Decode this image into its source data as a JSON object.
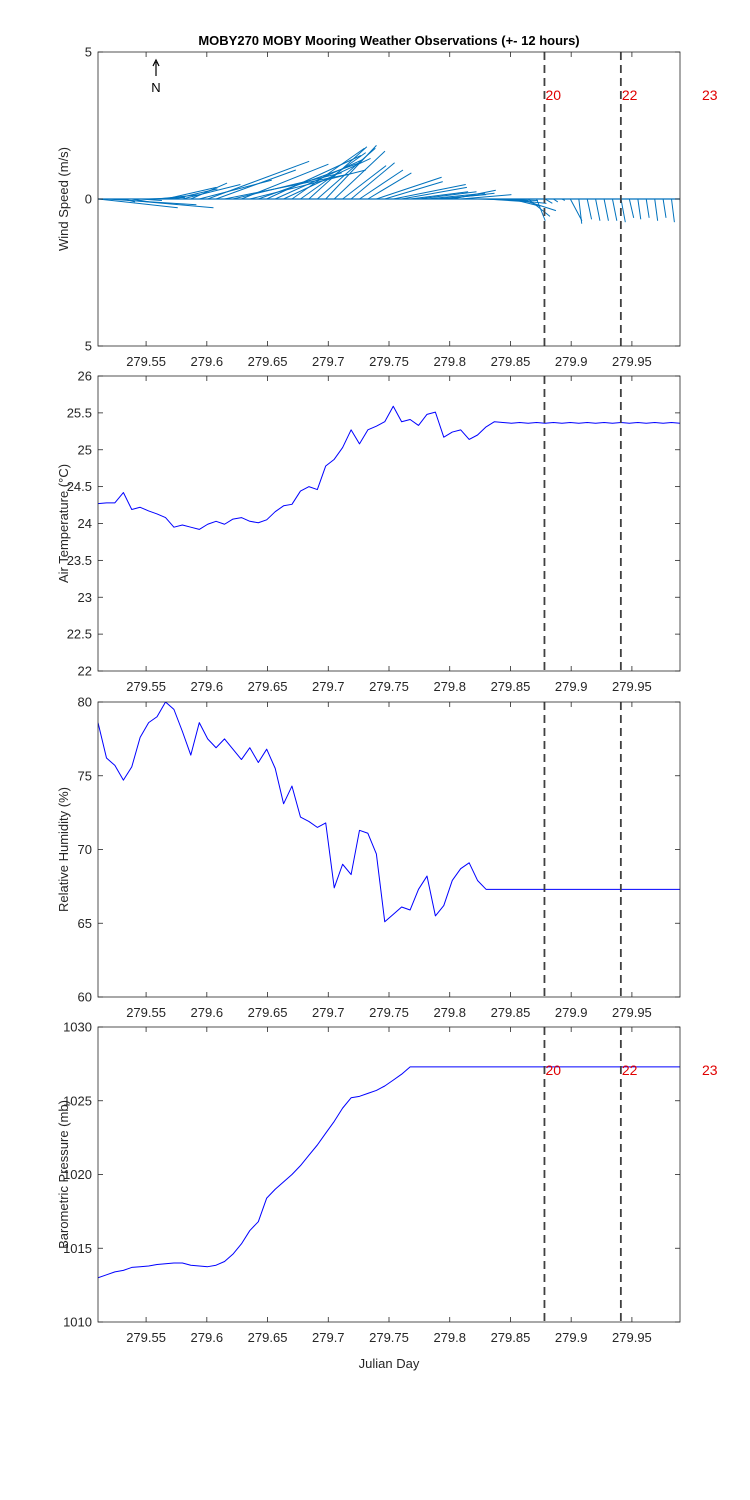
{
  "title": "MOBY270 MOBY Mooring Weather Observations (+- 12 hours)",
  "xlabel": "Julian Day",
  "north_label": "N",
  "colors": {
    "wind": "#0072BD",
    "line": "#0000FF",
    "marker_text": "#E00000",
    "marker_line": "#404040"
  },
  "chart_data": [
    {
      "id": "wind",
      "type": "quiver",
      "ylabel": "Wind Speed (m/s)",
      "xlim": [
        279.5104,
        279.9896
      ],
      "ylim": [
        -5,
        5
      ],
      "yticks": [
        -5,
        0,
        5
      ],
      "ytick_labels": [
        "5",
        "0",
        "5"
      ],
      "xticks": [
        279.55,
        279.6,
        279.65,
        279.7,
        279.75,
        279.8,
        279.85,
        279.9,
        279.95
      ],
      "xtick_labels": [
        "279.55",
        "279.6",
        "279.65",
        "279.7",
        "279.75",
        "279.8",
        "279.85",
        "279.9",
        "279.95"
      ],
      "x": [
        279.5104,
        279.5174,
        279.5243,
        279.5313,
        279.5382,
        279.5451,
        279.5521,
        279.559,
        279.566,
        279.5729,
        279.5799,
        279.5868,
        279.5938,
        279.6007,
        279.6076,
        279.6146,
        279.6215,
        279.6285,
        279.6354,
        279.6424,
        279.6493,
        279.6563,
        279.6632,
        279.6701,
        279.6771,
        279.684,
        279.691,
        279.6979,
        279.7049,
        279.7118,
        279.7188,
        279.7257,
        279.7326,
        279.7396,
        279.7465,
        279.7535,
        279.7604,
        279.7674,
        279.7743,
        279.7813,
        279.7882,
        279.7951,
        279.8021,
        279.809,
        279.816,
        279.8229,
        279.8299,
        279.8368,
        279.8438,
        279.8507,
        279.8576,
        279.8646,
        279.8715,
        279.8785,
        279.8854,
        279.8924,
        279.8993,
        279.9063,
        279.9132,
        279.9201,
        279.9271,
        279.934,
        279.941,
        279.9479,
        279.9549,
        279.9618,
        279.9688,
        279.9757,
        279.9826,
        279.9896
      ],
      "u": [
        5.5,
        6.2,
        6.8,
        0.8,
        1.2,
        1.5,
        2.5,
        3.0,
        3.5,
        3.0,
        4.0,
        2.5,
        5.0,
        7.0,
        5.5,
        8.5,
        7.5,
        6.0,
        8.0,
        7.0,
        6.5,
        6.0,
        6.0,
        5.0,
        4.5,
        4.0,
        4.0,
        3.5,
        3.5,
        3.0,
        3.0,
        3.0,
        3.0,
        4.5,
        4.0,
        5.0,
        4.5,
        4.0,
        4.0,
        4.0,
        3.5,
        3.5,
        3.0,
        3.5,
        3.5,
        3.5,
        3.0,
        3.0,
        3.0,
        2.0,
        2.5,
        1.5,
        0.6,
        0.5,
        0.3,
        0.2,
        0.8,
        0.2,
        0.3,
        0.3,
        0.3,
        0.3,
        0.3,
        0.3,
        0.2,
        0.2,
        0.2,
        0.2,
        0.2,
        0.2
      ],
      "v": [
        -0.6,
        -0.4,
        -0.6,
        -0.2,
        -0.2,
        -0.1,
        0.1,
        0.3,
        0.8,
        0.7,
        1.0,
        1.1,
        1.3,
        2.6,
        2.0,
        1.7,
        1.8,
        2.4,
        2.0,
        2.5,
        3.0,
        2.7,
        2.8,
        3.5,
        3.2,
        3.6,
        3.5,
        3.7,
        3.3,
        2.3,
        2.5,
        2.0,
        1.8,
        1.5,
        1.2,
        1.0,
        0.8,
        0.5,
        0.5,
        0.4,
        0.3,
        0.4,
        0.6,
        0.3,
        0.0,
        -0.1,
        -0.2,
        -0.1,
        -0.3,
        -0.5,
        -0.8,
        -1.2,
        -1.5,
        -0.3,
        -0.2,
        -0.1,
        -1.5,
        -1.7,
        -1.4,
        -1.5,
        -1.5,
        -1.5,
        -1.6,
        -1.3,
        -1.4,
        -1.3,
        -1.5,
        -1.3,
        -1.6,
        -1.4
      ],
      "verticals": [
        279.878,
        279.9409
      ],
      "markers": [
        {
          "x": 279.878,
          "label": "20"
        },
        {
          "x": 279.9409,
          "label": "22"
        },
        {
          "x": 280.0,
          "label": "23"
        }
      ]
    },
    {
      "id": "airtemp",
      "type": "line",
      "ylabel": "Air Temperature (°C)",
      "xlim": [
        279.5104,
        279.9896
      ],
      "ylim": [
        22,
        26
      ],
      "yticks": [
        22,
        22.5,
        23,
        23.5,
        24,
        24.5,
        25,
        25.5,
        26
      ],
      "ytick_labels": [
        "22",
        "22.5",
        "23",
        "23.5",
        "24",
        "24.5",
        "25",
        "25.5",
        "26"
      ],
      "xticks": [
        279.55,
        279.6,
        279.65,
        279.7,
        279.75,
        279.8,
        279.85,
        279.9,
        279.95
      ],
      "xtick_labels": [
        "279.55",
        "279.6",
        "279.65",
        "279.7",
        "279.75",
        "279.8",
        "279.85",
        "279.9",
        "279.95"
      ],
      "x": [
        279.5104,
        279.5174,
        279.5243,
        279.5313,
        279.5382,
        279.5451,
        279.5521,
        279.559,
        279.566,
        279.5729,
        279.5799,
        279.5868,
        279.5938,
        279.6007,
        279.6076,
        279.6146,
        279.6215,
        279.6285,
        279.6354,
        279.6424,
        279.6493,
        279.6563,
        279.6632,
        279.6701,
        279.6771,
        279.684,
        279.691,
        279.6979,
        279.7049,
        279.7118,
        279.7188,
        279.7257,
        279.7326,
        279.7396,
        279.7465,
        279.7535,
        279.7604,
        279.7674,
        279.7743,
        279.7813,
        279.7882,
        279.7951,
        279.8021,
        279.809,
        279.816,
        279.8229,
        279.8299,
        279.8368,
        279.8438,
        279.8507,
        279.8576,
        279.8646,
        279.8715,
        279.8785,
        279.8854,
        279.8924,
        279.8993,
        279.9063,
        279.9132,
        279.9201,
        279.9271,
        279.934,
        279.941,
        279.9479,
        279.9549,
        279.9618,
        279.9688,
        279.9757,
        279.9826,
        279.9896
      ],
      "y": [
        24.27,
        24.28,
        24.28,
        24.42,
        24.19,
        24.22,
        24.17,
        24.13,
        24.08,
        23.95,
        23.98,
        23.95,
        23.92,
        23.99,
        24.03,
        23.99,
        24.06,
        24.08,
        24.03,
        24.01,
        24.05,
        24.16,
        24.24,
        24.26,
        24.44,
        24.5,
        24.46,
        24.78,
        24.87,
        25.03,
        25.27,
        25.08,
        25.27,
        25.32,
        25.38,
        25.59,
        25.38,
        25.41,
        25.33,
        25.48,
        25.51,
        25.17,
        25.24,
        25.27,
        25.14,
        25.2,
        25.31,
        25.38,
        25.37,
        25.36,
        25.37,
        25.36,
        25.37,
        25.36,
        25.37,
        25.36,
        25.37,
        25.36,
        25.37,
        25.36,
        25.37,
        25.36,
        25.37,
        25.36,
        25.37,
        25.36,
        25.37,
        25.36,
        25.37,
        25.36
      ],
      "verticals": [
        279.878,
        279.9409
      ],
      "markers": []
    },
    {
      "id": "humidity",
      "type": "line",
      "ylabel": "Relative Humidity (%)",
      "xlim": [
        279.5104,
        279.9896
      ],
      "ylim": [
        60,
        80
      ],
      "yticks": [
        60,
        65,
        70,
        75,
        80
      ],
      "ytick_labels": [
        "60",
        "65",
        "70",
        "75",
        "80"
      ],
      "xticks": [
        279.55,
        279.6,
        279.65,
        279.7,
        279.75,
        279.8,
        279.85,
        279.9,
        279.95
      ],
      "xtick_labels": [
        "279.55",
        "279.6",
        "279.65",
        "279.7",
        "279.75",
        "279.8",
        "279.85",
        "279.9",
        "279.95"
      ],
      "x": [
        279.5104,
        279.5174,
        279.5243,
        279.5313,
        279.5382,
        279.5451,
        279.5521,
        279.559,
        279.566,
        279.5729,
        279.5799,
        279.5868,
        279.5938,
        279.6007,
        279.6076,
        279.6146,
        279.6215,
        279.6285,
        279.6354,
        279.6424,
        279.6493,
        279.6563,
        279.6632,
        279.6701,
        279.6771,
        279.684,
        279.691,
        279.6979,
        279.7049,
        279.7118,
        279.7188,
        279.7257,
        279.7326,
        279.7396,
        279.7465,
        279.7535,
        279.7604,
        279.7674,
        279.7743,
        279.7813,
        279.7882,
        279.7951,
        279.8021,
        279.809,
        279.816,
        279.8229,
        279.8299,
        279.8368,
        279.8438,
        279.8507,
        279.8576,
        279.8646,
        279.8715,
        279.8785,
        279.8854,
        279.8924,
        279.8993,
        279.9063,
        279.9132,
        279.9201,
        279.9271,
        279.934,
        279.941,
        279.9479,
        279.9549,
        279.9618,
        279.9688,
        279.9757,
        279.9826,
        279.9896
      ],
      "y": [
        78.6,
        76.2,
        75.7,
        74.7,
        75.6,
        77.6,
        78.6,
        79.0,
        80.0,
        79.5,
        78.0,
        76.4,
        78.6,
        77.5,
        76.9,
        77.5,
        76.8,
        76.1,
        76.9,
        75.9,
        76.8,
        75.5,
        73.1,
        74.3,
        72.2,
        71.9,
        71.5,
        71.8,
        67.4,
        69.0,
        68.3,
        71.3,
        71.1,
        69.7,
        65.1,
        65.6,
        66.1,
        65.9,
        67.3,
        68.2,
        65.5,
        66.2,
        67.9,
        68.7,
        69.1,
        67.9,
        67.3,
        67.3,
        67.3,
        67.3,
        67.3,
        67.3,
        67.3,
        67.3,
        67.3,
        67.3,
        67.3,
        67.3,
        67.3,
        67.3,
        67.3,
        67.3,
        67.3,
        67.3,
        67.3,
        67.3,
        67.3,
        67.3,
        67.3,
        67.3
      ],
      "verticals": [
        279.878,
        279.9409
      ],
      "markers": []
    },
    {
      "id": "pressure",
      "type": "line",
      "ylabel": "Barometric Pressure (mb)",
      "xlim": [
        279.5104,
        279.9896
      ],
      "ylim": [
        1010,
        1030
      ],
      "yticks": [
        1010,
        1015,
        1020,
        1025,
        1030
      ],
      "ytick_labels": [
        "1010",
        "1015",
        "1020",
        "1025",
        "1030"
      ],
      "xticks": [
        279.55,
        279.6,
        279.65,
        279.7,
        279.75,
        279.8,
        279.85,
        279.9,
        279.95
      ],
      "xtick_labels": [
        "279.55",
        "279.6",
        "279.65",
        "279.7",
        "279.75",
        "279.8",
        "279.85",
        "279.9",
        "279.95"
      ],
      "x": [
        279.5104,
        279.5174,
        279.5243,
        279.5313,
        279.5382,
        279.5451,
        279.5521,
        279.559,
        279.566,
        279.5729,
        279.5799,
        279.5868,
        279.5938,
        279.6007,
        279.6076,
        279.6146,
        279.6215,
        279.6285,
        279.6354,
        279.6424,
        279.6493,
        279.6563,
        279.6632,
        279.6701,
        279.6771,
        279.684,
        279.691,
        279.6979,
        279.7049,
        279.7118,
        279.7188,
        279.7257,
        279.7326,
        279.7396,
        279.7465,
        279.7535,
        279.7604,
        279.7674,
        279.7743,
        279.7813,
        279.7882,
        279.7951,
        279.8021,
        279.809,
        279.816,
        279.8229,
        279.8299,
        279.8368,
        279.8438,
        279.8507,
        279.8576,
        279.8646,
        279.8715,
        279.8785,
        279.8854,
        279.8924,
        279.8993,
        279.9063,
        279.9132,
        279.9201,
        279.9271,
        279.934,
        279.941,
        279.9479,
        279.9549,
        279.9618,
        279.9688,
        279.9757,
        279.9826,
        279.9896
      ],
      "y": [
        1013.0,
        1013.2,
        1013.4,
        1013.5,
        1013.7,
        1013.75,
        1013.8,
        1013.9,
        1013.95,
        1014.0,
        1014.0,
        1013.85,
        1013.8,
        1013.75,
        1013.85,
        1014.1,
        1014.6,
        1015.3,
        1016.2,
        1016.8,
        1018.4,
        1019.0,
        1019.5,
        1020.0,
        1020.6,
        1021.3,
        1022.0,
        1022.8,
        1023.6,
        1024.5,
        1025.2,
        1025.3,
        1025.5,
        1025.7,
        1026.0,
        1026.4,
        1026.8,
        1027.3,
        1027.3,
        1027.3,
        1027.3,
        1027.3,
        1027.3,
        1027.3,
        1027.3,
        1027.3,
        1027.3,
        1027.3,
        1027.3,
        1027.3,
        1027.3,
        1027.3,
        1027.3,
        1027.3,
        1027.3,
        1027.3,
        1027.3,
        1027.3,
        1027.3,
        1027.3,
        1027.3,
        1027.3,
        1027.3,
        1027.3,
        1027.3,
        1027.3,
        1027.3,
        1027.3,
        1027.3,
        1027.3
      ],
      "verticals": [
        279.878,
        279.9409
      ],
      "markers": [
        {
          "x": 279.878,
          "label": "20"
        },
        {
          "x": 279.9409,
          "label": "22"
        },
        {
          "x": 280.0,
          "label": "23"
        }
      ]
    }
  ]
}
